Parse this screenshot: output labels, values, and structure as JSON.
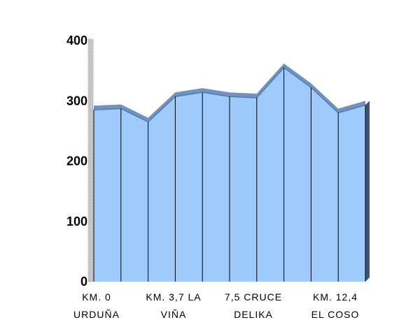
{
  "chart_data": {
    "type": "area",
    "title": "",
    "xlabel": "",
    "ylabel": "",
    "ylim": [
      0,
      400
    ],
    "yticks": [
      0,
      100,
      200,
      300,
      400
    ],
    "grid": false,
    "legend": "none",
    "colors": {
      "fill": "#9ecbfb",
      "top_shadow": "#6f93c0",
      "edge_shadow": "#3c5670",
      "divider": "#000000",
      "axis": "#9a9a9a"
    },
    "x_labels": [
      [
        "KM. 0",
        "URDUÑA"
      ],
      [
        "KM. 3,7 LA",
        "VIÑA"
      ],
      [
        "7,5 CRUCE",
        "DELIKA"
      ],
      [
        "KM. 12,4",
        "EL COSO"
      ]
    ],
    "series": [
      {
        "values": [
          285,
          287,
          265,
          307,
          314,
          307,
          305,
          355,
          322,
          280,
          293
        ]
      }
    ]
  }
}
